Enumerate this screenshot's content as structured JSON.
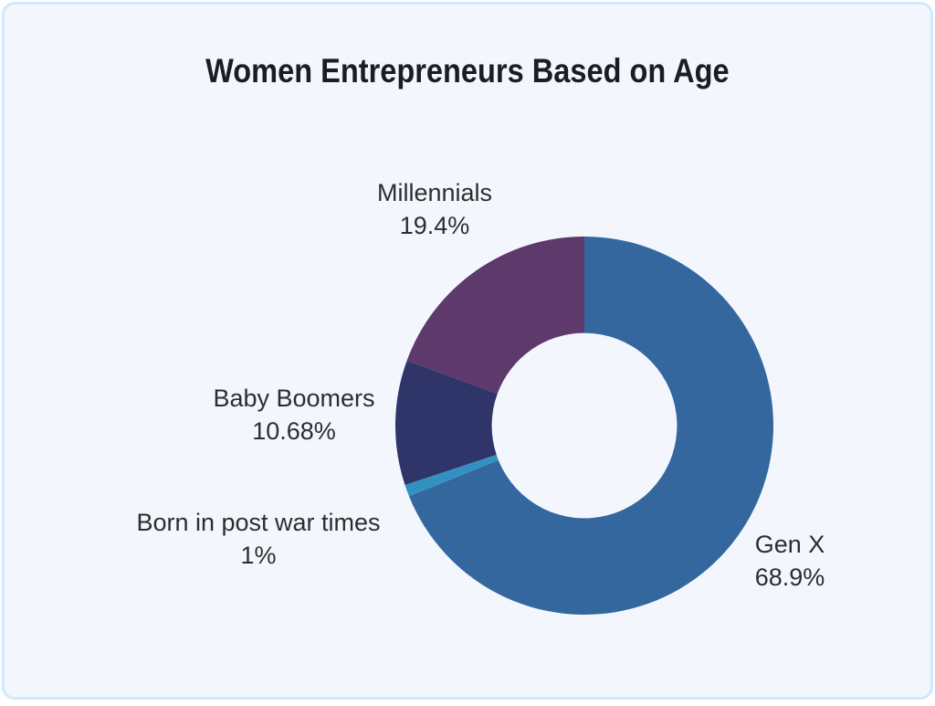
{
  "card": {
    "background_color": "#f3f7fd",
    "border_color": "#cfeafd"
  },
  "chart_data": {
    "type": "pie",
    "subtype": "donut",
    "title": "Women Entrepreneurs Based on Age",
    "title_color": "#1b1c26",
    "label_color": "#2d2d2d",
    "start_angle_deg": 0,
    "direction": "clockwise",
    "inner_radius_ratio": 0.49,
    "legend_position": "labels-outside",
    "slices": [
      {
        "label": "Gen X",
        "value": 68.9,
        "display": "68.9%",
        "color": "#33679e"
      },
      {
        "label": "Born in post war times",
        "value": 1,
        "display": "1%",
        "color": "#3291c0"
      },
      {
        "label": "Baby Boomers",
        "value": 10.68,
        "display": "10.68%",
        "color": "#2f3568"
      },
      {
        "label": "Millennials",
        "value": 19.4,
        "display": "19.4%",
        "color": "#5d3a6b"
      }
    ]
  }
}
